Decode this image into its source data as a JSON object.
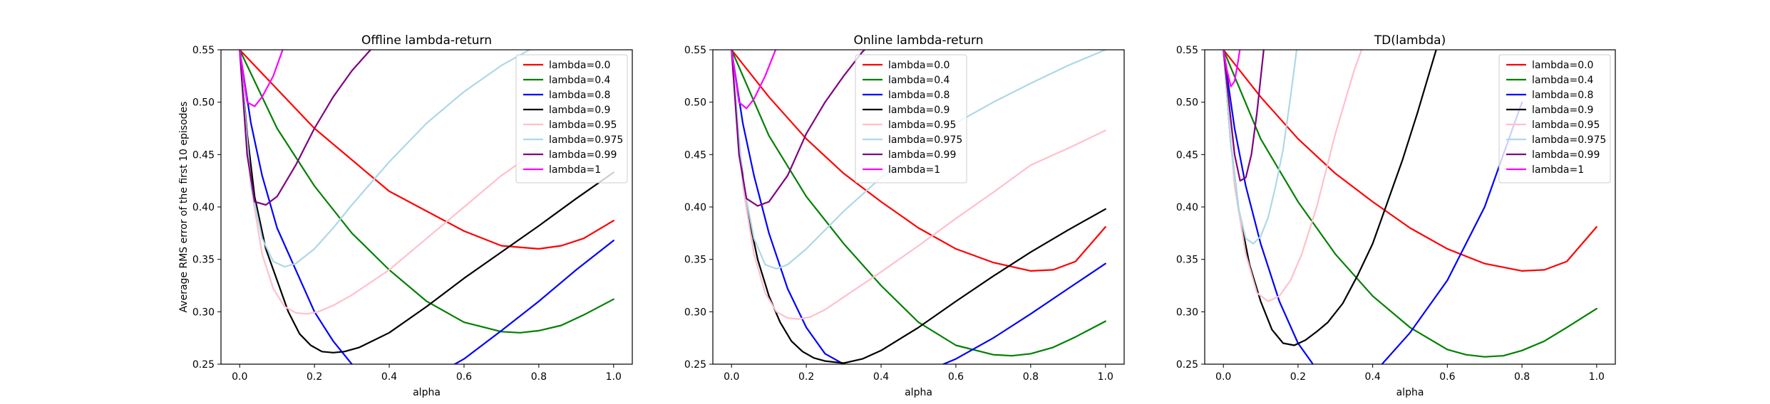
{
  "chart_data": [
    {
      "type": "line",
      "title": "Offline lambda-return",
      "xlabel": "alpha",
      "ylabel": "Average RMS error of the first 10 episodes",
      "xlim": [
        -0.05,
        1.05
      ],
      "ylim": [
        0.25,
        0.55
      ],
      "xticks": [
        "0.0",
        "0.2",
        "0.4",
        "0.6",
        "0.8",
        "1.0"
      ],
      "yticks": [
        "0.25",
        "0.30",
        "0.35",
        "0.40",
        "0.45",
        "0.50",
        "0.55"
      ],
      "grid": false,
      "legend": "top-right",
      "series": [
        {
          "name": "lambda=0.0",
          "color": "#ff0000",
          "x": [
            0,
            0.2,
            0.4,
            0.6,
            0.7,
            0.8,
            0.86,
            0.92,
            1.0
          ],
          "y": [
            0.55,
            0.475,
            0.415,
            0.377,
            0.363,
            0.36,
            0.363,
            0.37,
            0.387
          ]
        },
        {
          "name": "lambda=0.4",
          "color": "#008000",
          "x": [
            0,
            0.1,
            0.2,
            0.3,
            0.4,
            0.5,
            0.6,
            0.7,
            0.75,
            0.8,
            0.86,
            0.92,
            1.0
          ],
          "y": [
            0.55,
            0.475,
            0.42,
            0.375,
            0.34,
            0.31,
            0.29,
            0.281,
            0.28,
            0.282,
            0.287,
            0.297,
            0.312
          ]
        },
        {
          "name": "lambda=0.8",
          "color": "#0000ff",
          "x": [
            0,
            0.03,
            0.06,
            0.1,
            0.15,
            0.2,
            0.25,
            0.3,
            0.4,
            0.5,
            0.6,
            0.7,
            0.8,
            0.9,
            1.0
          ],
          "y": [
            0.55,
            0.48,
            0.43,
            0.38,
            0.34,
            0.3,
            0.272,
            0.25,
            0.23,
            0.235,
            0.255,
            0.282,
            0.31,
            0.34,
            0.368
          ]
        },
        {
          "name": "lambda=0.9",
          "color": "#000000",
          "x": [
            0,
            0.02,
            0.04,
            0.07,
            0.1,
            0.13,
            0.16,
            0.19,
            0.22,
            0.25,
            0.28,
            0.32,
            0.4,
            0.5,
            0.6,
            0.7,
            0.8,
            0.9,
            1.0
          ],
          "y": [
            0.55,
            0.47,
            0.41,
            0.36,
            0.33,
            0.3,
            0.279,
            0.268,
            0.262,
            0.261,
            0.262,
            0.266,
            0.28,
            0.305,
            0.332,
            0.357,
            0.382,
            0.408,
            0.433
          ]
        },
        {
          "name": "lambda=0.95",
          "color": "#ffc0cb",
          "x": [
            0,
            0.03,
            0.06,
            0.09,
            0.12,
            0.15,
            0.18,
            0.21,
            0.25,
            0.3,
            0.4,
            0.5,
            0.6,
            0.7,
            0.8
          ],
          "y": [
            0.55,
            0.42,
            0.355,
            0.322,
            0.305,
            0.299,
            0.298,
            0.3,
            0.306,
            0.316,
            0.34,
            0.37,
            0.4,
            0.43,
            0.455
          ]
        },
        {
          "name": "lambda=0.975",
          "color": "#add8e6",
          "x": [
            0,
            0.03,
            0.06,
            0.09,
            0.12,
            0.15,
            0.2,
            0.25,
            0.3,
            0.4,
            0.5,
            0.6,
            0.7,
            0.8
          ],
          "y": [
            0.55,
            0.42,
            0.37,
            0.348,
            0.343,
            0.346,
            0.36,
            0.38,
            0.402,
            0.443,
            0.48,
            0.51,
            0.535,
            0.555
          ]
        },
        {
          "name": "lambda=0.99",
          "color": "#800080",
          "x": [
            0,
            0.02,
            0.04,
            0.07,
            0.1,
            0.15,
            0.2,
            0.25,
            0.3,
            0.35,
            0.4
          ],
          "y": [
            0.55,
            0.45,
            0.405,
            0.402,
            0.41,
            0.44,
            0.475,
            0.505,
            0.53,
            0.55,
            0.565
          ]
        },
        {
          "name": "lambda=1",
          "color": "#ff00ff",
          "x": [
            0,
            0.02,
            0.04,
            0.06,
            0.09,
            0.12,
            0.15
          ],
          "y": [
            0.55,
            0.5,
            0.496,
            0.505,
            0.525,
            0.555,
            0.58
          ]
        }
      ]
    },
    {
      "type": "line",
      "title": "Online lambda-return",
      "xlabel": "alpha",
      "ylabel": "",
      "xlim": [
        -0.05,
        1.05
      ],
      "ylim": [
        0.25,
        0.55
      ],
      "xticks": [
        "0.0",
        "0.2",
        "0.4",
        "0.6",
        "0.8",
        "1.0"
      ],
      "yticks": [
        "0.25",
        "0.30",
        "0.35",
        "0.40",
        "0.45",
        "0.50",
        "0.55"
      ],
      "grid": false,
      "legend": "top-center",
      "series": [
        {
          "name": "lambda=0.0",
          "color": "#ff0000",
          "x": [
            0,
            0.1,
            0.2,
            0.3,
            0.4,
            0.5,
            0.6,
            0.7,
            0.8,
            0.86,
            0.92,
            1.0
          ],
          "y": [
            0.55,
            0.505,
            0.465,
            0.432,
            0.405,
            0.38,
            0.36,
            0.347,
            0.339,
            0.34,
            0.348,
            0.381
          ]
        },
        {
          "name": "lambda=0.4",
          "color": "#008000",
          "x": [
            0,
            0.1,
            0.2,
            0.3,
            0.4,
            0.5,
            0.6,
            0.7,
            0.75,
            0.8,
            0.86,
            0.92,
            1.0
          ],
          "y": [
            0.55,
            0.468,
            0.41,
            0.365,
            0.325,
            0.29,
            0.268,
            0.259,
            0.258,
            0.26,
            0.266,
            0.276,
            0.291
          ]
        },
        {
          "name": "lambda=0.8",
          "color": "#0000ff",
          "x": [
            0,
            0.03,
            0.06,
            0.1,
            0.15,
            0.2,
            0.25,
            0.3,
            0.35,
            0.4,
            0.5,
            0.6,
            0.7,
            0.8,
            0.9,
            1.0
          ],
          "y": [
            0.55,
            0.48,
            0.43,
            0.375,
            0.322,
            0.285,
            0.26,
            0.25,
            0.24,
            0.235,
            0.24,
            0.255,
            0.275,
            0.298,
            0.322,
            0.346
          ]
        },
        {
          "name": "lambda=0.9",
          "color": "#000000",
          "x": [
            0,
            0.02,
            0.04,
            0.07,
            0.1,
            0.13,
            0.16,
            0.19,
            0.22,
            0.25,
            0.3,
            0.35,
            0.4,
            0.5,
            0.6,
            0.7,
            0.8,
            0.9,
            1.0
          ],
          "y": [
            0.55,
            0.46,
            0.4,
            0.35,
            0.315,
            0.29,
            0.272,
            0.262,
            0.256,
            0.253,
            0.251,
            0.255,
            0.263,
            0.285,
            0.31,
            0.334,
            0.357,
            0.378,
            0.398
          ]
        },
        {
          "name": "lambda=0.95",
          "color": "#ffc0cb",
          "x": [
            0,
            0.03,
            0.06,
            0.09,
            0.12,
            0.15,
            0.18,
            0.21,
            0.25,
            0.3,
            0.4,
            0.5,
            0.6,
            0.7,
            0.8,
            0.9,
            1.0
          ],
          "y": [
            0.55,
            0.42,
            0.355,
            0.318,
            0.3,
            0.294,
            0.293,
            0.295,
            0.302,
            0.314,
            0.338,
            0.363,
            0.389,
            0.414,
            0.44,
            0.456,
            0.473
          ]
        },
        {
          "name": "lambda=0.975",
          "color": "#add8e6",
          "x": [
            0,
            0.03,
            0.06,
            0.09,
            0.12,
            0.15,
            0.2,
            0.25,
            0.3,
            0.4,
            0.5,
            0.6,
            0.7,
            0.8,
            0.9,
            1.0
          ],
          "y": [
            0.55,
            0.425,
            0.37,
            0.345,
            0.341,
            0.345,
            0.36,
            0.378,
            0.396,
            0.428,
            0.456,
            0.48,
            0.5,
            0.518,
            0.535,
            0.55
          ]
        },
        {
          "name": "lambda=0.99",
          "color": "#800080",
          "x": [
            0,
            0.02,
            0.04,
            0.07,
            0.1,
            0.15,
            0.2,
            0.25,
            0.3,
            0.35,
            0.4
          ],
          "y": [
            0.55,
            0.45,
            0.408,
            0.401,
            0.405,
            0.43,
            0.47,
            0.5,
            0.525,
            0.548,
            0.565
          ]
        },
        {
          "name": "lambda=1",
          "color": "#ff00ff",
          "x": [
            0,
            0.02,
            0.04,
            0.06,
            0.09,
            0.12,
            0.15
          ],
          "y": [
            0.55,
            0.5,
            0.494,
            0.503,
            0.525,
            0.552,
            0.578
          ]
        }
      ]
    },
    {
      "type": "line",
      "title": "TD(lambda)",
      "xlabel": "alpha",
      "ylabel": "",
      "xlim": [
        -0.05,
        1.05
      ],
      "ylim": [
        0.25,
        0.55
      ],
      "xticks": [
        "0.0",
        "0.2",
        "0.4",
        "0.6",
        "0.8",
        "1.0"
      ],
      "yticks": [
        "0.25",
        "0.30",
        "0.35",
        "0.40",
        "0.45",
        "0.50",
        "0.55"
      ],
      "grid": false,
      "legend": "top-right",
      "series": [
        {
          "name": "lambda=0.0",
          "color": "#ff0000",
          "x": [
            0,
            0.1,
            0.2,
            0.3,
            0.4,
            0.5,
            0.6,
            0.7,
            0.8,
            0.86,
            0.92,
            1.0
          ],
          "y": [
            0.55,
            0.505,
            0.465,
            0.432,
            0.405,
            0.38,
            0.36,
            0.346,
            0.339,
            0.34,
            0.348,
            0.381
          ]
        },
        {
          "name": "lambda=0.4",
          "color": "#008000",
          "x": [
            0,
            0.1,
            0.2,
            0.3,
            0.4,
            0.5,
            0.6,
            0.65,
            0.7,
            0.75,
            0.8,
            0.86,
            0.92,
            1.0
          ],
          "y": [
            0.55,
            0.465,
            0.405,
            0.355,
            0.315,
            0.285,
            0.264,
            0.259,
            0.257,
            0.258,
            0.263,
            0.272,
            0.285,
            0.303
          ]
        },
        {
          "name": "lambda=0.8",
          "color": "#0000ff",
          "x": [
            0,
            0.03,
            0.06,
            0.1,
            0.15,
            0.2,
            0.25,
            0.3,
            0.4,
            0.5,
            0.6,
            0.7,
            0.75,
            0.8
          ],
          "y": [
            0.55,
            0.475,
            0.42,
            0.365,
            0.31,
            0.27,
            0.245,
            0.235,
            0.24,
            0.28,
            0.33,
            0.4,
            0.45,
            0.5
          ]
        },
        {
          "name": "lambda=0.9",
          "color": "#000000",
          "x": [
            0,
            0.02,
            0.04,
            0.07,
            0.1,
            0.13,
            0.16,
            0.19,
            0.22,
            0.25,
            0.28,
            0.32,
            0.36,
            0.4,
            0.44,
            0.48,
            0.52,
            0.57
          ],
          "y": [
            0.55,
            0.46,
            0.4,
            0.345,
            0.31,
            0.283,
            0.27,
            0.268,
            0.273,
            0.281,
            0.29,
            0.308,
            0.335,
            0.365,
            0.405,
            0.445,
            0.49,
            0.55
          ]
        },
        {
          "name": "lambda=0.95",
          "color": "#ffc0cb",
          "x": [
            0,
            0.03,
            0.06,
            0.09,
            0.12,
            0.15,
            0.18,
            0.21,
            0.25,
            0.3,
            0.35,
            0.4
          ],
          "y": [
            0.55,
            0.42,
            0.355,
            0.318,
            0.31,
            0.315,
            0.33,
            0.355,
            0.4,
            0.47,
            0.53,
            0.58
          ]
        },
        {
          "name": "lambda=0.975",
          "color": "#add8e6",
          "x": [
            0,
            0.02,
            0.04,
            0.06,
            0.08,
            0.1,
            0.12,
            0.14,
            0.16,
            0.18,
            0.2
          ],
          "y": [
            0.55,
            0.46,
            0.4,
            0.37,
            0.365,
            0.372,
            0.39,
            0.42,
            0.455,
            0.505,
            0.56
          ]
        },
        {
          "name": "lambda=0.99",
          "color": "#800080",
          "x": [
            0,
            0.015,
            0.03,
            0.045,
            0.06,
            0.075,
            0.09,
            0.105,
            0.12
          ],
          "y": [
            0.55,
            0.5,
            0.45,
            0.425,
            0.428,
            0.45,
            0.49,
            0.54,
            0.59
          ]
        },
        {
          "name": "lambda=1",
          "color": "#ff00ff",
          "x": [
            0,
            0.01,
            0.02,
            0.03,
            0.04,
            0.05
          ],
          "y": [
            0.55,
            0.53,
            0.515,
            0.52,
            0.54,
            0.565
          ]
        }
      ]
    }
  ]
}
